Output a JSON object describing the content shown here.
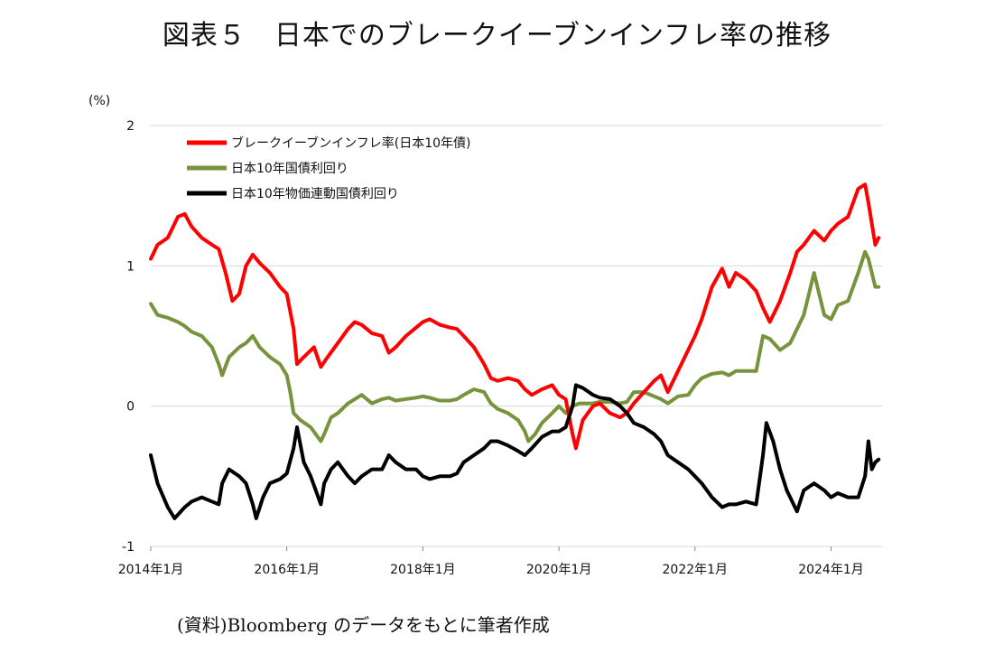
{
  "title": "図表５　日本でのブレークイーブンインフレ率の推移",
  "source": "(資料)Bloomberg のデータをもとに筆者作成",
  "chart_data": {
    "type": "line",
    "ylabel": "(%)",
    "ylim": [
      -1,
      2
    ],
    "yticks": [
      "2",
      "1",
      "0",
      "-1"
    ],
    "xlim": [
      2014.0,
      2024.75
    ],
    "xticks": [
      {
        "x": 2014,
        "label": "2014年1月"
      },
      {
        "x": 2016,
        "label": "2016年1月"
      },
      {
        "x": 2018,
        "label": "2018年1月"
      },
      {
        "x": 2020,
        "label": "2020年1月"
      },
      {
        "x": 2022,
        "label": "2022年1月"
      },
      {
        "x": 2024,
        "label": "2024年1月"
      }
    ],
    "legend_position": "top-left",
    "series": [
      {
        "name": "ブレークイーブンインフレ率(日本10年債)",
        "color": "#ff0000",
        "points": [
          [
            2014.0,
            1.05
          ],
          [
            2014.1,
            1.15
          ],
          [
            2014.25,
            1.2
          ],
          [
            2014.4,
            1.35
          ],
          [
            2014.5,
            1.37
          ],
          [
            2014.6,
            1.28
          ],
          [
            2014.75,
            1.2
          ],
          [
            2014.9,
            1.15
          ],
          [
            2015.0,
            1.12
          ],
          [
            2015.1,
            0.95
          ],
          [
            2015.2,
            0.75
          ],
          [
            2015.3,
            0.8
          ],
          [
            2015.4,
            1.0
          ],
          [
            2015.5,
            1.08
          ],
          [
            2015.6,
            1.02
          ],
          [
            2015.75,
            0.95
          ],
          [
            2015.9,
            0.85
          ],
          [
            2016.0,
            0.8
          ],
          [
            2016.1,
            0.55
          ],
          [
            2016.15,
            0.3
          ],
          [
            2016.25,
            0.35
          ],
          [
            2016.4,
            0.42
          ],
          [
            2016.5,
            0.28
          ],
          [
            2016.6,
            0.35
          ],
          [
            2016.75,
            0.45
          ],
          [
            2016.9,
            0.55
          ],
          [
            2017.0,
            0.6
          ],
          [
            2017.1,
            0.58
          ],
          [
            2017.25,
            0.52
          ],
          [
            2017.4,
            0.5
          ],
          [
            2017.5,
            0.38
          ],
          [
            2017.6,
            0.42
          ],
          [
            2017.75,
            0.5
          ],
          [
            2017.9,
            0.56
          ],
          [
            2018.0,
            0.6
          ],
          [
            2018.1,
            0.62
          ],
          [
            2018.25,
            0.58
          ],
          [
            2018.4,
            0.56
          ],
          [
            2018.5,
            0.55
          ],
          [
            2018.6,
            0.5
          ],
          [
            2018.75,
            0.42
          ],
          [
            2018.9,
            0.3
          ],
          [
            2019.0,
            0.2
          ],
          [
            2019.1,
            0.18
          ],
          [
            2019.25,
            0.2
          ],
          [
            2019.4,
            0.18
          ],
          [
            2019.5,
            0.12
          ],
          [
            2019.6,
            0.08
          ],
          [
            2019.75,
            0.12
          ],
          [
            2019.9,
            0.15
          ],
          [
            2020.0,
            0.08
          ],
          [
            2020.1,
            0.05
          ],
          [
            2020.2,
            -0.2
          ],
          [
            2020.25,
            -0.3
          ],
          [
            2020.35,
            -0.1
          ],
          [
            2020.5,
            0.0
          ],
          [
            2020.6,
            0.02
          ],
          [
            2020.75,
            -0.05
          ],
          [
            2020.9,
            -0.08
          ],
          [
            2021.0,
            -0.05
          ],
          [
            2021.1,
            0.02
          ],
          [
            2021.25,
            0.1
          ],
          [
            2021.4,
            0.18
          ],
          [
            2021.5,
            0.22
          ],
          [
            2021.6,
            0.1
          ],
          [
            2021.75,
            0.25
          ],
          [
            2021.9,
            0.4
          ],
          [
            2022.0,
            0.5
          ],
          [
            2022.1,
            0.62
          ],
          [
            2022.25,
            0.85
          ],
          [
            2022.4,
            0.98
          ],
          [
            2022.5,
            0.85
          ],
          [
            2022.6,
            0.95
          ],
          [
            2022.75,
            0.9
          ],
          [
            2022.9,
            0.82
          ],
          [
            2023.0,
            0.7
          ],
          [
            2023.1,
            0.6
          ],
          [
            2023.25,
            0.75
          ],
          [
            2023.4,
            0.95
          ],
          [
            2023.5,
            1.1
          ],
          [
            2023.6,
            1.15
          ],
          [
            2023.75,
            1.25
          ],
          [
            2023.9,
            1.18
          ],
          [
            2024.0,
            1.25
          ],
          [
            2024.1,
            1.3
          ],
          [
            2024.25,
            1.35
          ],
          [
            2024.4,
            1.55
          ],
          [
            2024.5,
            1.58
          ],
          [
            2024.55,
            1.45
          ],
          [
            2024.6,
            1.3
          ],
          [
            2024.65,
            1.15
          ],
          [
            2024.7,
            1.2
          ]
        ]
      },
      {
        "name": "日本10年国債利回り",
        "color": "#77933c",
        "points": [
          [
            2014.0,
            0.73
          ],
          [
            2014.1,
            0.65
          ],
          [
            2014.25,
            0.63
          ],
          [
            2014.4,
            0.6
          ],
          [
            2014.5,
            0.57
          ],
          [
            2014.6,
            0.53
          ],
          [
            2014.75,
            0.5
          ],
          [
            2014.9,
            0.42
          ],
          [
            2015.0,
            0.3
          ],
          [
            2015.05,
            0.22
          ],
          [
            2015.15,
            0.35
          ],
          [
            2015.3,
            0.42
          ],
          [
            2015.4,
            0.45
          ],
          [
            2015.5,
            0.5
          ],
          [
            2015.6,
            0.42
          ],
          [
            2015.75,
            0.35
          ],
          [
            2015.9,
            0.3
          ],
          [
            2016.0,
            0.22
          ],
          [
            2016.05,
            0.1
          ],
          [
            2016.1,
            -0.05
          ],
          [
            2016.2,
            -0.1
          ],
          [
            2016.35,
            -0.15
          ],
          [
            2016.5,
            -0.25
          ],
          [
            2016.55,
            -0.2
          ],
          [
            2016.65,
            -0.08
          ],
          [
            2016.75,
            -0.05
          ],
          [
            2016.9,
            0.02
          ],
          [
            2017.0,
            0.05
          ],
          [
            2017.1,
            0.08
          ],
          [
            2017.25,
            0.02
          ],
          [
            2017.4,
            0.05
          ],
          [
            2017.5,
            0.06
          ],
          [
            2017.6,
            0.04
          ],
          [
            2017.75,
            0.05
          ],
          [
            2017.9,
            0.06
          ],
          [
            2018.0,
            0.07
          ],
          [
            2018.1,
            0.06
          ],
          [
            2018.25,
            0.04
          ],
          [
            2018.4,
            0.04
          ],
          [
            2018.5,
            0.05
          ],
          [
            2018.6,
            0.08
          ],
          [
            2018.75,
            0.12
          ],
          [
            2018.9,
            0.1
          ],
          [
            2019.0,
            0.02
          ],
          [
            2019.1,
            -0.02
          ],
          [
            2019.25,
            -0.05
          ],
          [
            2019.4,
            -0.1
          ],
          [
            2019.5,
            -0.18
          ],
          [
            2019.55,
            -0.25
          ],
          [
            2019.65,
            -0.2
          ],
          [
            2019.75,
            -0.12
          ],
          [
            2019.9,
            -0.05
          ],
          [
            2020.0,
            0.0
          ],
          [
            2020.1,
            -0.05
          ],
          [
            2020.2,
            0.0
          ],
          [
            2020.3,
            0.02
          ],
          [
            2020.5,
            0.02
          ],
          [
            2020.6,
            0.03
          ],
          [
            2020.75,
            0.03
          ],
          [
            2020.9,
            0.02
          ],
          [
            2021.0,
            0.03
          ],
          [
            2021.1,
            0.1
          ],
          [
            2021.25,
            0.1
          ],
          [
            2021.4,
            0.07
          ],
          [
            2021.5,
            0.05
          ],
          [
            2021.6,
            0.02
          ],
          [
            2021.75,
            0.07
          ],
          [
            2021.9,
            0.08
          ],
          [
            2022.0,
            0.15
          ],
          [
            2022.1,
            0.2
          ],
          [
            2022.25,
            0.23
          ],
          [
            2022.4,
            0.24
          ],
          [
            2022.5,
            0.22
          ],
          [
            2022.6,
            0.25
          ],
          [
            2022.75,
            0.25
          ],
          [
            2022.9,
            0.25
          ],
          [
            2023.0,
            0.5
          ],
          [
            2023.1,
            0.48
          ],
          [
            2023.25,
            0.4
          ],
          [
            2023.4,
            0.45
          ],
          [
            2023.5,
            0.55
          ],
          [
            2023.6,
            0.65
          ],
          [
            2023.7,
            0.85
          ],
          [
            2023.75,
            0.95
          ],
          [
            2023.9,
            0.65
          ],
          [
            2024.0,
            0.62
          ],
          [
            2024.1,
            0.72
          ],
          [
            2024.25,
            0.75
          ],
          [
            2024.4,
            0.95
          ],
          [
            2024.5,
            1.1
          ],
          [
            2024.55,
            1.05
          ],
          [
            2024.6,
            0.95
          ],
          [
            2024.65,
            0.85
          ],
          [
            2024.7,
            0.85
          ]
        ]
      },
      {
        "name": "日本10年物価連動国債利回り",
        "color": "#000000",
        "points": [
          [
            2014.0,
            -0.35
          ],
          [
            2014.1,
            -0.55
          ],
          [
            2014.25,
            -0.72
          ],
          [
            2014.35,
            -0.8
          ],
          [
            2014.5,
            -0.72
          ],
          [
            2014.6,
            -0.68
          ],
          [
            2014.75,
            -0.65
          ],
          [
            2014.9,
            -0.68
          ],
          [
            2015.0,
            -0.7
          ],
          [
            2015.05,
            -0.55
          ],
          [
            2015.15,
            -0.45
          ],
          [
            2015.3,
            -0.5
          ],
          [
            2015.4,
            -0.55
          ],
          [
            2015.5,
            -0.7
          ],
          [
            2015.55,
            -0.8
          ],
          [
            2015.65,
            -0.65
          ],
          [
            2015.75,
            -0.55
          ],
          [
            2015.9,
            -0.52
          ],
          [
            2016.0,
            -0.48
          ],
          [
            2016.1,
            -0.3
          ],
          [
            2016.15,
            -0.15
          ],
          [
            2016.25,
            -0.4
          ],
          [
            2016.35,
            -0.5
          ],
          [
            2016.5,
            -0.7
          ],
          [
            2016.55,
            -0.55
          ],
          [
            2016.65,
            -0.45
          ],
          [
            2016.75,
            -0.4
          ],
          [
            2016.9,
            -0.5
          ],
          [
            2017.0,
            -0.55
          ],
          [
            2017.1,
            -0.5
          ],
          [
            2017.25,
            -0.45
          ],
          [
            2017.4,
            -0.45
          ],
          [
            2017.5,
            -0.35
          ],
          [
            2017.6,
            -0.4
          ],
          [
            2017.75,
            -0.45
          ],
          [
            2017.9,
            -0.45
          ],
          [
            2018.0,
            -0.5
          ],
          [
            2018.1,
            -0.52
          ],
          [
            2018.25,
            -0.5
          ],
          [
            2018.4,
            -0.5
          ],
          [
            2018.5,
            -0.48
          ],
          [
            2018.6,
            -0.4
          ],
          [
            2018.75,
            -0.35
          ],
          [
            2018.9,
            -0.3
          ],
          [
            2019.0,
            -0.25
          ],
          [
            2019.1,
            -0.25
          ],
          [
            2019.25,
            -0.28
          ],
          [
            2019.4,
            -0.32
          ],
          [
            2019.5,
            -0.35
          ],
          [
            2019.6,
            -0.3
          ],
          [
            2019.75,
            -0.22
          ],
          [
            2019.9,
            -0.18
          ],
          [
            2020.0,
            -0.18
          ],
          [
            2020.1,
            -0.15
          ],
          [
            2020.2,
            0.0
          ],
          [
            2020.25,
            0.15
          ],
          [
            2020.35,
            0.13
          ],
          [
            2020.5,
            0.08
          ],
          [
            2020.6,
            0.06
          ],
          [
            2020.75,
            0.05
          ],
          [
            2020.9,
            0.0
          ],
          [
            2021.0,
            -0.05
          ],
          [
            2021.1,
            -0.12
          ],
          [
            2021.25,
            -0.15
          ],
          [
            2021.4,
            -0.2
          ],
          [
            2021.5,
            -0.25
          ],
          [
            2021.6,
            -0.35
          ],
          [
            2021.75,
            -0.4
          ],
          [
            2021.9,
            -0.45
          ],
          [
            2022.0,
            -0.5
          ],
          [
            2022.1,
            -0.55
          ],
          [
            2022.25,
            -0.65
          ],
          [
            2022.4,
            -0.72
          ],
          [
            2022.5,
            -0.7
          ],
          [
            2022.6,
            -0.7
          ],
          [
            2022.75,
            -0.68
          ],
          [
            2022.9,
            -0.7
          ],
          [
            2023.0,
            -0.35
          ],
          [
            2023.05,
            -0.12
          ],
          [
            2023.15,
            -0.25
          ],
          [
            2023.25,
            -0.45
          ],
          [
            2023.35,
            -0.6
          ],
          [
            2023.5,
            -0.75
          ],
          [
            2023.6,
            -0.6
          ],
          [
            2023.75,
            -0.55
          ],
          [
            2023.9,
            -0.6
          ],
          [
            2024.0,
            -0.65
          ],
          [
            2024.1,
            -0.62
          ],
          [
            2024.25,
            -0.65
          ],
          [
            2024.4,
            -0.65
          ],
          [
            2024.5,
            -0.5
          ],
          [
            2024.55,
            -0.25
          ],
          [
            2024.6,
            -0.45
          ],
          [
            2024.65,
            -0.4
          ],
          [
            2024.7,
            -0.38
          ]
        ]
      }
    ]
  }
}
